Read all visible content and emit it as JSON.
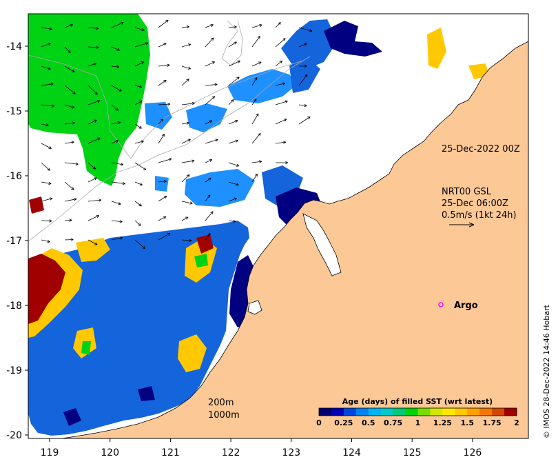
{
  "axes": {
    "x_ticks": [
      "119",
      "120",
      "121",
      "122",
      "123",
      "124",
      "125",
      "126"
    ],
    "y_ticks": [
      "-14",
      "-15",
      "-16",
      "-17",
      "-18",
      "-19",
      "-20"
    ]
  },
  "annotations": {
    "timestamp": "25-Dec-2022 00Z",
    "current_line1": "NRT00 GSL",
    "current_line2": "25-Dec 06:00Z",
    "current_line3": "0.5m/s (1kt 24h)",
    "argo_label": "Argo",
    "isobath_200": "200m",
    "isobath_1000": "1000m",
    "credit": "© IMOS 28-Dec-2022 14:46 Hobart"
  },
  "colorbar": {
    "title": "Age (days) of filled SST (wrt latest)",
    "tick_labels": [
      "0",
      "0.25",
      "0.5",
      "0.75",
      "1",
      "1.25",
      "1.5",
      "1.75",
      "2"
    ],
    "colors": [
      "#00006e",
      "#0000b4",
      "#0046dc",
      "#0082f0",
      "#00b4f0",
      "#00c8c8",
      "#00c878",
      "#00d200",
      "#78dc00",
      "#d2e600",
      "#ffe600",
      "#ffc800",
      "#ffa000",
      "#f07800",
      "#d24600",
      "#a00000"
    ]
  },
  "colors": {
    "land": "#fcc896",
    "coast": "#000000",
    "green_old": "#00d214",
    "blue_mid": "#1464dc",
    "blue_light": "#1e90ff",
    "navy": "#000080",
    "yellow": "#ffc800",
    "darkred": "#a00000"
  },
  "map_legend": {
    "argo_marker_color": "#ff00ff"
  }
}
